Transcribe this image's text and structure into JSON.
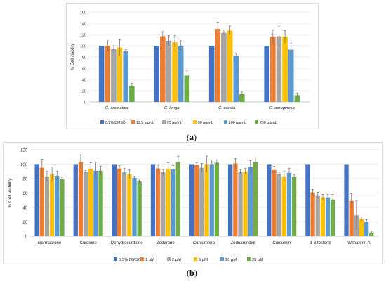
{
  "captions": {
    "a": "a",
    "b": "b"
  },
  "chart_data": [
    {
      "type": "bar",
      "ylabel": "% Cell viability",
      "ylim": [
        0,
        160
      ],
      "yticks": [
        0,
        20,
        40,
        60,
        80,
        100,
        120,
        140,
        160
      ],
      "categories": [
        "C. aromatica",
        "C. longa",
        "C. caesia",
        "C. aeruginosa"
      ],
      "legend_position": "bottom",
      "series": [
        {
          "name": "0.5% DMSO",
          "color": "#4472c4",
          "values": [
            100,
            100,
            100,
            100
          ],
          "errors": [
            0,
            0,
            0,
            0
          ]
        },
        {
          "name": "12.5 µg/mL",
          "color": "#ed7d31",
          "values": [
            100,
            117,
            130,
            116
          ],
          "errors": [
            9,
            8,
            12,
            12
          ]
        },
        {
          "name": "25 µg/mL",
          "color": "#a5a5a5",
          "values": [
            94,
            109,
            123,
            117
          ],
          "errors": [
            6,
            9,
            5,
            18
          ]
        },
        {
          "name": "50 µg/mL",
          "color": "#ffc000",
          "values": [
            97,
            106,
            127,
            116
          ],
          "errors": [
            14,
            12,
            8,
            11
          ]
        },
        {
          "name": "100 µg/mL",
          "color": "#5b9bd5",
          "values": [
            90,
            100,
            82,
            93
          ],
          "errors": [
            3,
            9,
            5,
            12
          ]
        },
        {
          "name": "200 µg/mL",
          "color": "#70ad47",
          "values": [
            29,
            47,
            14,
            12
          ],
          "errors": [
            4,
            9,
            5,
            4
          ]
        }
      ]
    },
    {
      "type": "bar",
      "ylabel": "% Cell viability",
      "ylim": [
        0,
        120
      ],
      "yticks": [
        0,
        20,
        40,
        60,
        80,
        100,
        120
      ],
      "categories": [
        "Germacrone",
        "Curdione",
        "Dehydrocurdione",
        "Zederone",
        "Curcumenol",
        "Zedoarondiol",
        "Curcumin",
        "β-Sitosterol",
        "Withaferin A"
      ],
      "legend_position": "bottom",
      "series": [
        {
          "name": "0.5% DMSO",
          "color": "#4472c4",
          "values": [
            100,
            100,
            100,
            100,
            100,
            100,
            100,
            100,
            100
          ],
          "errors": [
            0,
            0,
            0,
            0,
            0,
            0,
            0,
            0,
            0
          ]
        },
        {
          "name": "1 µM",
          "color": "#ed7d31",
          "values": [
            95,
            103,
            94,
            94,
            99,
            101,
            92,
            61,
            49
          ],
          "errors": [
            12,
            10,
            4,
            5,
            3,
            7,
            5,
            4,
            10
          ]
        },
        {
          "name": "2 µM",
          "color": "#a5a5a5",
          "values": [
            83,
            89,
            89,
            89,
            95,
            89,
            86,
            57,
            29
          ],
          "errors": [
            7,
            2,
            5,
            4,
            6,
            3,
            2,
            4,
            20
          ]
        },
        {
          "name": "5 µM",
          "color": "#ffc000",
          "values": [
            86,
            94,
            86,
            94,
            100,
            90,
            83,
            54,
            24
          ],
          "errors": [
            10,
            8,
            6,
            8,
            11,
            4,
            7,
            4,
            3
          ]
        },
        {
          "name": "10 µM",
          "color": "#5b9bd5",
          "values": [
            84,
            91,
            81,
            93,
            100,
            96,
            88,
            54,
            20
          ],
          "errors": [
            6,
            12,
            2,
            5,
            6,
            9,
            6,
            4,
            3
          ]
        },
        {
          "name": "20 µM",
          "color": "#70ad47",
          "values": [
            79,
            91,
            76,
            103,
            102,
            103,
            82,
            51,
            5
          ],
          "errors": [
            3,
            6,
            2,
            8,
            4,
            6,
            4,
            7,
            2
          ]
        }
      ]
    }
  ]
}
